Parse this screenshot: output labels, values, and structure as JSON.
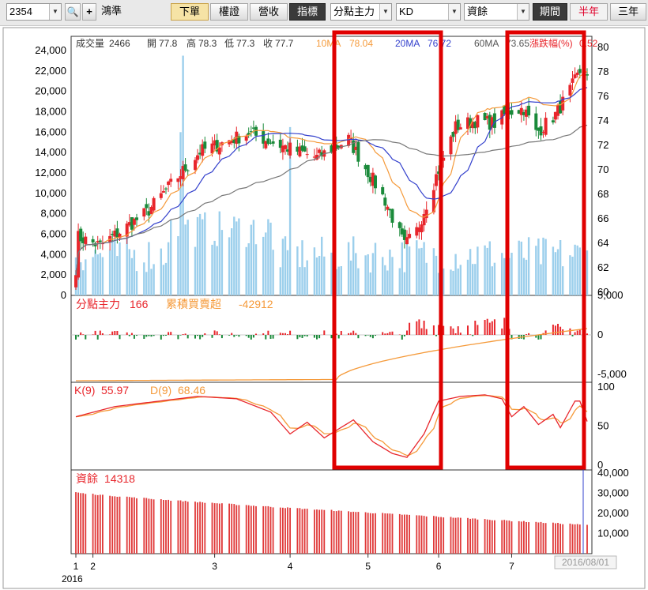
{
  "toolbar": {
    "stock_code": "2354",
    "stock_name": "鴻準",
    "tabs": [
      "下單",
      "權證",
      "營收"
    ],
    "indicator_label": "指標",
    "selects": [
      "分點主力",
      "KD",
      "資餘"
    ],
    "period_label": "期間",
    "timeframes": [
      "半年",
      "三年"
    ],
    "active_timeframe": "半年"
  },
  "panels": {
    "price": {
      "volume_label": "成交量",
      "volume_value": "2466",
      "open_label": "開",
      "open_value": "77.8",
      "high_label": "高",
      "high_value": "78.3",
      "low_label": "低",
      "low_value": "77.3",
      "close_label": "收",
      "close_value": "77.7",
      "ma10_label": "10MA",
      "ma10_value": "78.04",
      "ma20_label": "20MA",
      "ma20_value": "76.72",
      "ma60_label": "60MA",
      "ma60_value": "73.65",
      "change_label": "漲跌幅(%)",
      "change_value": "0.52"
    },
    "broker": {
      "main_label": "分點主力",
      "main_value": "166",
      "cum_label": "累積買賣超",
      "cum_value": "-42912"
    },
    "kd": {
      "k_label": "K(9)",
      "k_value": "55.97",
      "d_label": "D(9)",
      "d_value": "68.46"
    },
    "margin": {
      "label": "資餘",
      "value": "14318"
    }
  },
  "axes": {
    "volume_ticks": [
      "0",
      "2,000",
      "4,000",
      "6,000",
      "8,000",
      "10,000",
      "12,000",
      "14,000",
      "16,000",
      "18,000",
      "20,000",
      "22,000",
      "24,000"
    ],
    "price_ticks": [
      "60",
      "62",
      "64",
      "66",
      "68",
      "70",
      "72",
      "74",
      "76",
      "78",
      "80"
    ],
    "broker_ticks": [
      "5,000",
      "0",
      "-5,000"
    ],
    "kd_ticks": [
      "100",
      "50",
      "0"
    ],
    "margin_ticks": [
      "40,000",
      "30,000",
      "20,000",
      "10,000"
    ],
    "x_ticks": [
      "1",
      "2",
      "3",
      "4",
      "5",
      "6",
      "7"
    ],
    "year_label": "2016",
    "date_tag": "2016/08/01"
  },
  "colors": {
    "up": "#e8262c",
    "down": "#1a8a3a",
    "ma10": "#f59a3a",
    "ma20": "#3340cc",
    "ma60": "#777777",
    "volume": "#9ccfec",
    "highlight": "#e00000",
    "k_line": "#e8262c",
    "d_line": "#f59a3a",
    "margin_bar": "#e03838"
  },
  "chart_data": [
    {
      "type": "candlestick",
      "panel": "price_volume",
      "x_range": [
        "2016-01-04",
        "2016-08-01"
      ],
      "price_ylim": [
        60,
        80
      ],
      "volume_ylim": [
        0,
        24000
      ],
      "anchor_closes": [
        [
          "2016-01-04",
          62.0
        ],
        [
          "2016-01-05",
          64.5
        ],
        [
          "2016-01-14",
          63.8
        ],
        [
          "2016-01-26",
          65.5
        ],
        [
          "2016-02-02",
          66.5
        ],
        [
          "2016-02-24",
          71.5
        ],
        [
          "2016-03-15",
          73.0
        ],
        [
          "2016-03-28",
          72.0
        ],
        [
          "2016-04-12",
          71.0
        ],
        [
          "2016-04-25",
          72.5
        ],
        [
          "2016-05-04",
          69.5
        ],
        [
          "2016-05-10",
          67.5
        ],
        [
          "2016-05-18",
          63.8
        ],
        [
          "2016-05-23",
          65.0
        ],
        [
          "2016-05-31",
          69.5
        ],
        [
          "2016-06-08",
          73.5
        ],
        [
          "2016-06-16",
          74.0
        ],
        [
          "2016-06-24",
          73.8
        ],
        [
          "2016-06-30",
          74.8
        ],
        [
          "2016-07-06",
          75.0
        ],
        [
          "2016-07-11",
          73.0
        ],
        [
          "2016-07-19",
          74.5
        ],
        [
          "2016-07-25",
          76.5
        ],
        [
          "2016-07-29",
          78.0
        ],
        [
          "2016-08-01",
          77.7
        ]
      ],
      "volume_spikes": [
        [
          "2016-02-16",
          16000
        ],
        [
          "2016-02-17",
          23500
        ],
        [
          "2016-04-01",
          16500
        ],
        [
          "2016-06-02",
          13000
        ]
      ],
      "ma10_last": 78.04,
      "ma20_last": 76.72,
      "ma60_last": 73.65
    },
    {
      "type": "bar+line",
      "panel": "broker",
      "ylim": [
        -6000,
        5000
      ],
      "main_last": 166,
      "cum_last": -42912
    },
    {
      "type": "line",
      "panel": "kd",
      "ylim": [
        0,
        100
      ],
      "k_anchors": [
        [
          "2016-01-04",
          62
        ],
        [
          "2016-01-20",
          75
        ],
        [
          "2016-02-23",
          88
        ],
        [
          "2016-03-10",
          85
        ],
        [
          "2016-03-24",
          68
        ],
        [
          "2016-04-01",
          40
        ],
        [
          "2016-04-08",
          55
        ],
        [
          "2016-04-15",
          35
        ],
        [
          "2016-04-27",
          58
        ],
        [
          "2016-05-05",
          30
        ],
        [
          "2016-05-13",
          15
        ],
        [
          "2016-05-19",
          10
        ],
        [
          "2016-05-26",
          40
        ],
        [
          "2016-06-01",
          82
        ],
        [
          "2016-06-10",
          88
        ],
        [
          "2016-06-20",
          90
        ],
        [
          "2016-06-27",
          85
        ],
        [
          "2016-07-01",
          62
        ],
        [
          "2016-07-06",
          75
        ],
        [
          "2016-07-12",
          52
        ],
        [
          "2016-07-18",
          65
        ],
        [
          "2016-07-21",
          48
        ],
        [
          "2016-07-27",
          82
        ],
        [
          "2016-07-29",
          82
        ],
        [
          "2016-08-01",
          55.97
        ]
      ],
      "k_last": 55.97,
      "d_last": 68.46
    },
    {
      "type": "bar",
      "panel": "margin",
      "ylim": [
        0,
        40000
      ],
      "start_value": 30500,
      "end_value": 14318,
      "last": 14318
    }
  ]
}
